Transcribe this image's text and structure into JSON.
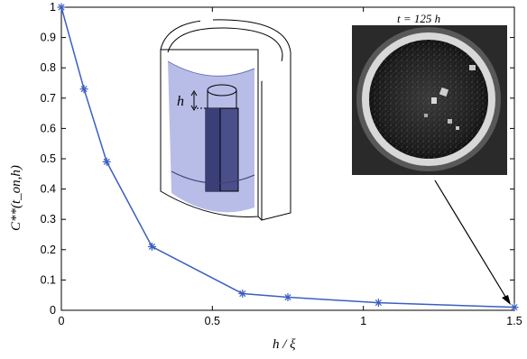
{
  "chart_data": {
    "type": "line",
    "title": "",
    "xlabel": "h / ξ",
    "ylabel": "C**(t_on,h)",
    "xlim": [
      0,
      1.5
    ],
    "ylim": [
      0,
      1
    ],
    "x_ticks": [
      "0",
      "0.5",
      "1",
      "1.5"
    ],
    "x_tick_values": [
      0,
      0.5,
      1,
      1.5
    ],
    "y_ticks": [
      "0",
      "0.1",
      "0.2",
      "0.3",
      "0.4",
      "0.5",
      "0.6",
      "0.7",
      "0.8",
      "0.9",
      "1"
    ],
    "y_tick_values": [
      0,
      0.1,
      0.2,
      0.3,
      0.4,
      0.5,
      0.6,
      0.7,
      0.8,
      0.9,
      1
    ],
    "grid": false,
    "series": [
      {
        "x": [
          0,
          0.075,
          0.15,
          0.3,
          0.6,
          0.75,
          1.05,
          1.5
        ],
        "y": [
          1.0,
          0.73,
          0.49,
          0.21,
          0.055,
          0.043,
          0.025,
          0.01
        ]
      }
    ],
    "line_color": "#3b5fc0",
    "marker": "asterisk",
    "inset_title": "t = 125 h",
    "diagram_label": "h"
  }
}
